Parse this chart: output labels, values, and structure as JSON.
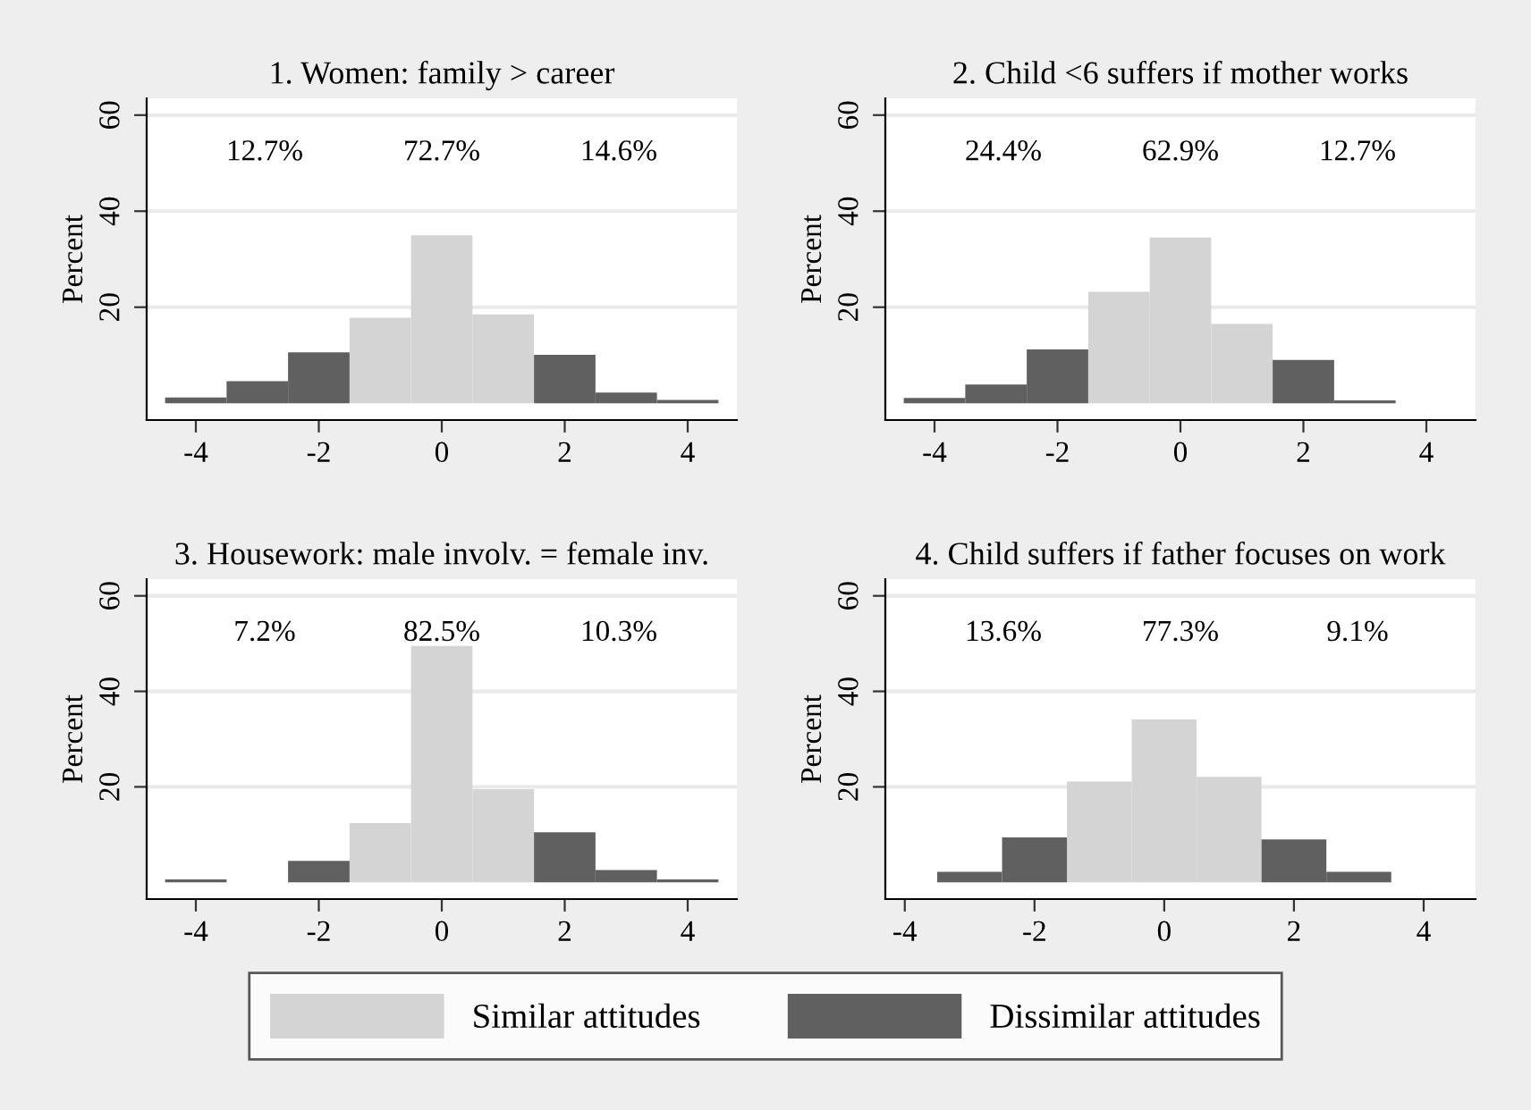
{
  "chart_data": [
    {
      "type": "histogram",
      "title": "1. Women: family > career",
      "ylabel": "Percent",
      "bins": [
        -4.5,
        -3.5,
        -2.5,
        -1.5,
        -0.5,
        0.5,
        1.5,
        2.5,
        3.5,
        4.5
      ],
      "series": [
        {
          "name": "Similar attitudes",
          "color": "#d4d4d4",
          "values": [
            null,
            null,
            null,
            17.8,
            35,
            18.5,
            null,
            null,
            null
          ]
        },
        {
          "name": "Dissimilar attitudes",
          "color": "#606060",
          "values": [
            1.2,
            4.6,
            10.6,
            null,
            null,
            null,
            10.1,
            2.2,
            0.7
          ]
        }
      ],
      "annotations": [
        "12.7%",
        "72.7%",
        "14.6%"
      ],
      "xlim": [
        -4.8,
        4.8
      ],
      "xticks": [
        -4,
        -2,
        0,
        2,
        4
      ],
      "ylim": [
        -3.5,
        63.5
      ],
      "yticks": [
        20,
        40,
        60
      ],
      "grid": "y",
      "legend": "bottom"
    },
    {
      "type": "histogram",
      "title": "2. Child <6 suffers if mother works",
      "ylabel": "Percent",
      "bins": [
        -4.5,
        -3.5,
        -2.5,
        -1.5,
        -0.5,
        0.5,
        1.5,
        2.5,
        3.5,
        4.5
      ],
      "series": [
        {
          "color": "#d4d4d4",
          "values": [
            null,
            null,
            null,
            23.2,
            34.5,
            16.5,
            null,
            null,
            null
          ]
        },
        {
          "color": "#606060",
          "values": [
            1.1,
            3.9,
            11.2,
            null,
            null,
            null,
            9,
            0.6,
            null
          ]
        }
      ],
      "annotations": [
        "24.4%",
        "62.9%",
        "12.7%"
      ],
      "xlim": [
        -4.8,
        4.8
      ],
      "xticks": [
        -4,
        -2,
        0,
        2,
        4
      ],
      "ylim": [
        -3.5,
        63.5
      ],
      "yticks": [
        20,
        40,
        60
      ],
      "grid": "y"
    },
    {
      "type": "histogram",
      "title": "3. Housework: male involv. = female inv.",
      "ylabel": "Percent",
      "bins": [
        -4.5,
        -3.5,
        -2.5,
        -1.5,
        -0.5,
        0.5,
        1.5,
        2.5,
        3.5,
        4.5
      ],
      "series": [
        {
          "color": "#d4d4d4",
          "values": [
            null,
            null,
            null,
            12.4,
            49.5,
            19.5,
            null,
            null,
            null
          ]
        },
        {
          "color": "#606060",
          "values": [
            0.6,
            null,
            4.5,
            null,
            null,
            null,
            10.5,
            2.6,
            0.6
          ]
        }
      ],
      "annotations": [
        "7.2%",
        "82.5%",
        "10.3%"
      ],
      "xlim": [
        -4.8,
        4.8
      ],
      "xticks": [
        -4,
        -2,
        0,
        2,
        4
      ],
      "ylim": [
        -3.5,
        63.5
      ],
      "yticks": [
        20,
        40,
        60
      ],
      "grid": "y"
    },
    {
      "type": "histogram",
      "title": "4. Child suffers if father focuses on work",
      "ylabel": "Percent",
      "bins": [
        -4.5,
        -3.5,
        -2.5,
        -1.5,
        -0.5,
        0.5,
        1.5,
        2.5,
        3.5,
        4.5
      ],
      "series": [
        {
          "color": "#d4d4d4",
          "values": [
            null,
            null,
            null,
            21.1,
            34.1,
            22.1,
            null,
            null,
            null
          ]
        },
        {
          "color": "#606060",
          "values": [
            null,
            2.2,
            9.4,
            null,
            null,
            null,
            9,
            2.2,
            null
          ]
        }
      ],
      "annotations": [
        "13.6%",
        "77.3%",
        "9.1%"
      ],
      "xlim": [
        -4.3,
        4.8
      ],
      "xticks": [
        -4,
        -2,
        0,
        2,
        4
      ],
      "ylim": [
        -3.5,
        63.5
      ],
      "yticks": [
        20,
        40,
        60
      ],
      "grid": "y"
    }
  ]
}
